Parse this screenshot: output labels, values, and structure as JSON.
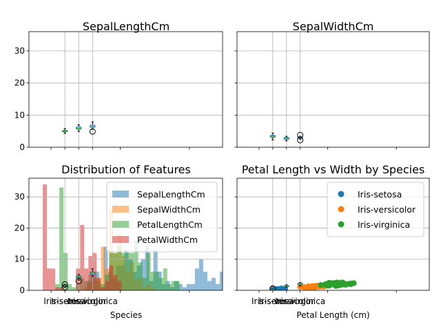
{
  "figure": {
    "colors": {
      "blue": "#1f77b4",
      "orange": "#ff7f0e",
      "green": "#2ca02c",
      "red": "#d62728",
      "grid": "#b0b0b0",
      "box": "#1f77b4",
      "median": "#2ca02c"
    }
  },
  "chart_data": [
    {
      "type": "box",
      "title": "SepalLengthCm",
      "categories": [
        "Iris-setosa",
        "Iris-versicolor",
        "Iris-virginica"
      ],
      "ylim": [
        0,
        36
      ],
      "yticks": [
        0,
        10,
        20,
        30
      ],
      "grid": true,
      "show_x_tick_labels": false,
      "show_y_tick_labels": true,
      "boxes": [
        {
          "category": "Iris-setosa",
          "whislo": 4.3,
          "q1": 4.8,
          "med": 5.0,
          "q3": 5.2,
          "whishi": 5.8,
          "fliers": []
        },
        {
          "category": "Iris-versicolor",
          "whislo": 4.9,
          "q1": 5.6,
          "med": 5.9,
          "q3": 6.3,
          "whishi": 7.0,
          "fliers": []
        },
        {
          "category": "Iris-virginica",
          "whislo": 5.6,
          "q1": 6.2,
          "med": 6.5,
          "q3": 6.9,
          "whishi": 7.9,
          "fliers": [
            4.9
          ]
        }
      ]
    },
    {
      "type": "box",
      "title": "SepalWidthCm",
      "categories": [
        "Iris-setosa",
        "Iris-versicolor",
        "Iris-virginica"
      ],
      "ylim": [
        0,
        36
      ],
      "yticks": [
        0,
        10,
        20,
        30
      ],
      "grid": true,
      "show_x_tick_labels": false,
      "show_y_tick_labels": false,
      "boxes": [
        {
          "category": "Iris-setosa",
          "whislo": 2.3,
          "q1": 3.1,
          "med": 3.4,
          "q3": 3.7,
          "whishi": 4.4,
          "fliers": []
        },
        {
          "category": "Iris-versicolor",
          "whislo": 2.0,
          "q1": 2.5,
          "med": 2.8,
          "q3": 3.0,
          "whishi": 3.4,
          "fliers": []
        },
        {
          "category": "Iris-virginica",
          "whislo": 2.5,
          "q1": 2.8,
          "med": 3.0,
          "q3": 3.2,
          "whishi": 3.4,
          "fliers": [
            3.8,
            2.2
          ]
        }
      ]
    },
    {
      "type": "histogram",
      "title": "Distribution of Features",
      "xlabel": "Species",
      "categories": [
        "Iris-setosa",
        "Iris-versicolor",
        "Iris-virginica"
      ],
      "ylim": [
        0,
        36
      ],
      "yticks": [
        0,
        10,
        20,
        30
      ],
      "grid": true,
      "show_x_tick_labels": true,
      "show_y_tick_labels": true,
      "legend_position": "top-right",
      "boxes": [
        {
          "category": "Iris-setosa",
          "whislo": 1.0,
          "q1": 1.4,
          "med": 1.5,
          "q3": 1.6,
          "whishi": 1.9,
          "fliers": [
            1.0,
            1.9
          ]
        },
        {
          "category": "Iris-versicolor",
          "whislo": 3.3,
          "q1": 4.0,
          "med": 4.35,
          "q3": 4.6,
          "whishi": 5.1,
          "fliers": [
            3.0
          ]
        },
        {
          "category": "Iris-virginica",
          "whislo": 4.5,
          "q1": 5.1,
          "med": 5.55,
          "q3": 5.9,
          "whishi": 6.9,
          "fliers": []
        }
      ],
      "series": [
        {
          "name": "SepalLengthCm",
          "color": "#1f77b4",
          "x0": 2.6,
          "bin_width": 0.3,
          "counts": [
            3,
            5,
            6,
            1,
            14,
            6,
            4,
            8,
            8,
            13,
            10,
            6,
            8,
            10,
            14,
            3,
            13,
            6,
            2,
            3,
            1,
            3,
            2,
            1,
            2,
            2,
            7,
            10,
            6,
            3,
            4,
            2,
            6,
            2,
            11,
            3,
            5,
            1,
            3,
            1,
            1,
            2,
            2,
            4,
            1,
            1,
            5,
            1
          ]
        },
        {
          "name": "SepalWidthCm",
          "color": "#ff7f0e",
          "x0": 2.4,
          "bin_width": 0.3,
          "counts": [
            1,
            2,
            3,
            4,
            14,
            7,
            26,
            12,
            18,
            11,
            6,
            9,
            3,
            4,
            1,
            2,
            1
          ]
        },
        {
          "name": "PetalLengthCm",
          "color": "#2ca02c",
          "x0": 0.3,
          "bin_width": 0.3,
          "counts": [
            2,
            33,
            12,
            2,
            1,
            2,
            4,
            3,
            5,
            4,
            3,
            2,
            5,
            12,
            12,
            14,
            12,
            12,
            12,
            16,
            9,
            4,
            12,
            6,
            6,
            4,
            7,
            2,
            3,
            3
          ]
        },
        {
          "name": "PetalWidthCm",
          "color": "#d62728",
          "x0": -0.6,
          "bin_width": 0.3,
          "counts": [
            34,
            7,
            7,
            1,
            1,
            0,
            0,
            0,
            7,
            21,
            7,
            11,
            12,
            4,
            1,
            3,
            8,
            5,
            3
          ]
        }
      ]
    },
    {
      "type": "scatter",
      "title": "Petal Length vs Width by Species",
      "xlabel": "Petal Length (cm)",
      "categories": [
        "Iris-setosa",
        "Iris-versicolor",
        "Iris-virginica"
      ],
      "ylim": [
        0,
        36
      ],
      "yticks": [
        0,
        10,
        20,
        30
      ],
      "grid": true,
      "show_x_tick_labels": true,
      "show_y_tick_labels": false,
      "legend_position": "top-right",
      "boxes": [
        {
          "category": "Iris-setosa",
          "whislo": 0.1,
          "q1": 0.2,
          "med": 0.2,
          "q3": 0.3,
          "whishi": 0.4,
          "fliers": [
            0.5,
            0.6
          ]
        },
        {
          "category": "Iris-versicolor",
          "whislo": 1.0,
          "q1": 1.2,
          "med": 1.3,
          "q3": 1.5,
          "whishi": 1.8,
          "fliers": []
        },
        {
          "category": "Iris-virginica",
          "whislo": 1.4,
          "q1": 1.8,
          "med": 2.0,
          "q3": 2.3,
          "whishi": 2.5,
          "fliers": []
        }
      ],
      "series": [
        {
          "name": "Iris-setosa",
          "color": "#1f77b4",
          "x": [
            1.4,
            1.4,
            1.3,
            1.5,
            1.4,
            1.7,
            1.4,
            1.5,
            1.4,
            1.5,
            1.5,
            1.6,
            1.4,
            1.1,
            1.2,
            1.5,
            1.3,
            1.4,
            1.7,
            1.5,
            1.7,
            1.5,
            1.0,
            1.7,
            1.9,
            1.6,
            1.6,
            1.5,
            1.4,
            1.6,
            1.6,
            1.5,
            1.5,
            1.4,
            1.5,
            1.2,
            1.3,
            1.5,
            1.3,
            1.5,
            1.3,
            1.3,
            1.3,
            1.6,
            1.9,
            1.4,
            1.6,
            1.4,
            1.5,
            1.4
          ],
          "y": [
            0.2,
            0.2,
            0.2,
            0.2,
            0.2,
            0.4,
            0.3,
            0.2,
            0.2,
            0.1,
            0.2,
            0.2,
            0.1,
            0.1,
            0.2,
            0.4,
            0.4,
            0.3,
            0.3,
            0.3,
            0.2,
            0.4,
            0.2,
            0.5,
            0.2,
            0.2,
            0.4,
            0.2,
            0.2,
            0.2,
            0.2,
            0.4,
            0.1,
            0.2,
            0.1,
            0.2,
            0.2,
            0.1,
            0.2,
            0.2,
            0.3,
            0.3,
            0.2,
            0.6,
            0.4,
            0.3,
            0.2,
            0.2,
            0.2,
            0.2
          ]
        },
        {
          "name": "Iris-versicolor",
          "color": "#ff7f0e",
          "x": [
            4.7,
            4.5,
            4.9,
            4.0,
            4.6,
            4.5,
            4.7,
            3.3,
            4.6,
            3.9,
            3.5,
            4.2,
            4.0,
            4.7,
            3.6,
            4.4,
            4.5,
            4.1,
            4.5,
            3.9,
            4.8,
            4.0,
            4.9,
            4.7,
            4.3,
            4.4,
            4.8,
            5.0,
            4.5,
            3.5,
            3.8,
            3.7,
            3.9,
            5.1,
            4.5,
            4.5,
            4.7,
            4.4,
            4.1,
            4.0,
            4.4,
            4.6,
            4.0,
            3.3,
            4.2,
            4.2,
            4.2,
            4.3,
            3.0,
            4.1
          ],
          "y": [
            1.4,
            1.5,
            1.5,
            1.3,
            1.5,
            1.3,
            1.6,
            1.0,
            1.3,
            1.4,
            1.0,
            1.5,
            1.0,
            1.4,
            1.3,
            1.4,
            1.5,
            1.0,
            1.5,
            1.1,
            1.8,
            1.3,
            1.5,
            1.2,
            1.3,
            1.4,
            1.4,
            1.7,
            1.5,
            1.0,
            1.1,
            1.0,
            1.2,
            1.6,
            1.5,
            1.6,
            1.5,
            1.3,
            1.3,
            1.3,
            1.2,
            1.4,
            1.2,
            1.0,
            1.3,
            1.2,
            1.3,
            1.3,
            1.1,
            1.3
          ]
        },
        {
          "name": "Iris-virginica",
          "color": "#2ca02c",
          "x": [
            6.0,
            5.1,
            5.9,
            5.6,
            5.8,
            6.6,
            4.5,
            6.3,
            5.8,
            6.1,
            5.1,
            5.3,
            5.5,
            5.0,
            5.1,
            5.3,
            5.5,
            6.7,
            6.9,
            5.0,
            5.7,
            4.9,
            6.7,
            4.9,
            5.7,
            6.0,
            4.8,
            4.9,
            5.6,
            5.8,
            6.1,
            6.4,
            5.6,
            5.1,
            5.6,
            6.1,
            5.6,
            5.5,
            4.8,
            5.4,
            5.6,
            5.1,
            5.1,
            5.9,
            5.7,
            5.2,
            5.0,
            5.2,
            5.4,
            5.1
          ],
          "y": [
            2.5,
            1.9,
            2.1,
            1.8,
            2.2,
            2.1,
            1.7,
            1.8,
            1.8,
            2.5,
            2.0,
            1.9,
            2.1,
            2.0,
            2.4,
            2.3,
            1.8,
            2.2,
            2.3,
            1.5,
            2.3,
            2.0,
            2.0,
            1.8,
            2.1,
            1.8,
            1.8,
            1.8,
            2.1,
            1.6,
            1.9,
            2.0,
            2.2,
            1.5,
            1.4,
            2.3,
            2.4,
            1.8,
            1.8,
            2.1,
            2.4,
            2.3,
            1.9,
            2.3,
            2.5,
            2.3,
            1.9,
            2.0,
            2.3,
            1.8
          ]
        }
      ]
    }
  ]
}
